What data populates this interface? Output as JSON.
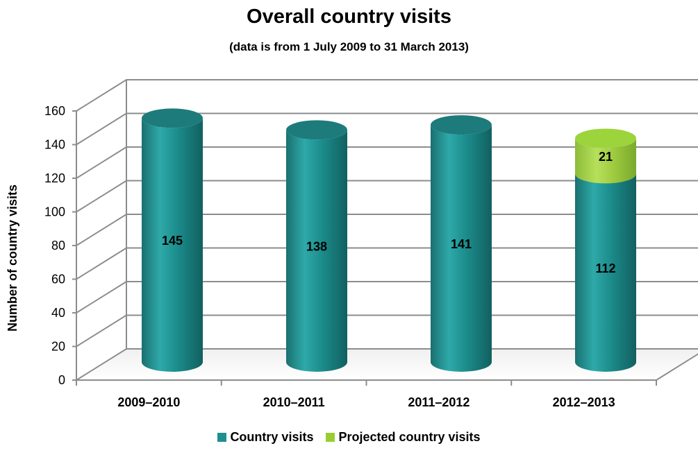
{
  "chart_data": {
    "type": "bar",
    "title": "Overall country visits",
    "subtitle": "(data is from 1 July 2009 to 31 March 2013)",
    "ylabel": "Number of country visits",
    "xlabel": "",
    "ylim": [
      0,
      160
    ],
    "yticks": [
      "0",
      "20",
      "40",
      "60",
      "80",
      "100",
      "120",
      "140",
      "160"
    ],
    "categories": [
      "2009–2010",
      "2010–2011",
      "2011–2012",
      "2012–2013"
    ],
    "stacked": true,
    "grid": true,
    "legend_position": "bottom",
    "series": [
      {
        "name": "Country visits",
        "values": [
          145,
          138,
          141,
          112
        ],
        "labels": [
          "145",
          "138",
          "141",
          "112"
        ],
        "color": "#1f8f8f"
      },
      {
        "name": "Projected country visits",
        "values": [
          0,
          0,
          0,
          21
        ],
        "labels": [
          "",
          "",
          "",
          "21"
        ],
        "color": "#9acd32"
      }
    ]
  }
}
